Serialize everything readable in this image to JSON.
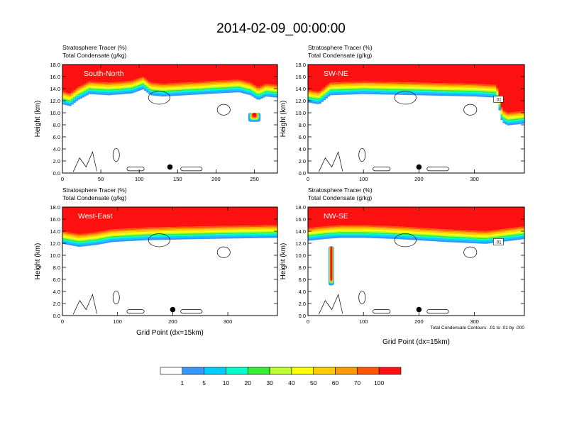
{
  "title": "2014-02-09_00:00:00",
  "colors": {
    "levels": [
      "#ffffff",
      "#3399ff",
      "#00ccff",
      "#00ffcc",
      "#33ee33",
      "#bbff33",
      "#ffff00",
      "#ffcc00",
      "#ff9900",
      "#ff5500",
      "#ff1111"
    ],
    "contour": "#000000",
    "marker": "#000000"
  },
  "chart_data": [
    {
      "type": "heatmap",
      "title_line1": "Stratosphere Tracer   (%)",
      "title_line2": "Total Condensate   (g/kg)",
      "label": "South-North",
      "ylabel": "Height (km)",
      "xlabel": "",
      "xlim": [
        0,
        280
      ],
      "ylim": [
        0,
        18
      ],
      "xticks": [
        "0",
        "50",
        "100",
        "150",
        "200",
        "250"
      ],
      "xtick_values": [
        0,
        50,
        100,
        150,
        200,
        250
      ],
      "yticks": [
        "0.0",
        "2.0",
        "4.0",
        "6.0",
        "8.0",
        "10.0",
        "12.0",
        "14.0",
        "16.0",
        "18.0"
      ],
      "marker": {
        "x": 140,
        "y": 1.0
      },
      "tropopause": [
        [
          0,
          13.5
        ],
        [
          10,
          13.2
        ],
        [
          20,
          14.2
        ],
        [
          35,
          15.2
        ],
        [
          60,
          15.0
        ],
        [
          90,
          15.3
        ],
        [
          105,
          16.0
        ],
        [
          115,
          15.0
        ],
        [
          130,
          14.8
        ],
        [
          160,
          15.0
        ],
        [
          200,
          15.3
        ],
        [
          230,
          15.5
        ],
        [
          245,
          15.0
        ],
        [
          255,
          14.2
        ],
        [
          265,
          14.8
        ],
        [
          280,
          14.6
        ]
      ],
      "intrusions": [
        [
          15,
          12.5,
          8,
          9.0
        ],
        [
          250,
          8.5,
          8,
          9.0
        ],
        [
          112,
          13.5,
          4,
          2.5
        ]
      ],
      "contour_label": "",
      "footnote": ""
    },
    {
      "type": "heatmap",
      "title_line1": "Stratosphere Tracer   (%)",
      "title_line2": "Total Condensate   (g/kg)",
      "label": "SW-NE",
      "ylabel": "Height (km)",
      "xlabel": "",
      "xlim": [
        0,
        390
      ],
      "ylim": [
        0,
        18
      ],
      "xticks": [
        "0",
        "100",
        "200",
        "300"
      ],
      "xtick_values": [
        0,
        100,
        200,
        300
      ],
      "yticks": [
        "0.0",
        "2.0",
        "4.0",
        "6.0",
        "8.0",
        "10.0",
        "12.0",
        "14.0",
        "16.0",
        "18.0"
      ],
      "marker": {
        "x": 200,
        "y": 1.0
      },
      "tropopause": [
        [
          0,
          13.8
        ],
        [
          20,
          13.5
        ],
        [
          40,
          15.0
        ],
        [
          100,
          15.2
        ],
        [
          200,
          15.0
        ],
        [
          300,
          14.8
        ],
        [
          340,
          14.6
        ],
        [
          350,
          10.5
        ],
        [
          360,
          10.0
        ],
        [
          390,
          10.3
        ]
      ],
      "intrusions": [],
      "contour_label": ".01",
      "footnote": ""
    },
    {
      "type": "heatmap",
      "title_line1": "Stratosphere Tracer   (%)",
      "title_line2": "Total Condensate   (g/kg)",
      "label": "West-East",
      "ylabel": "Height (km)",
      "xlabel": "Grid Point (dx=15km)",
      "xlim": [
        0,
        390
      ],
      "ylim": [
        0,
        18
      ],
      "xticks": [
        "0",
        "100",
        "200",
        "300"
      ],
      "xtick_values": [
        0,
        100,
        200,
        300
      ],
      "yticks": [
        "0.0",
        "2.0",
        "4.0",
        "6.0",
        "8.0",
        "10.0",
        "12.0",
        "14.0",
        "16.0",
        "18.0"
      ],
      "marker": {
        "x": 200,
        "y": 1.0
      },
      "tropopause": [
        [
          0,
          14.0
        ],
        [
          30,
          13.5
        ],
        [
          60,
          13.8
        ],
        [
          90,
          14.3
        ],
        [
          150,
          14.6
        ],
        [
          250,
          14.8
        ],
        [
          390,
          15.0
        ]
      ],
      "intrusions": [],
      "contour_label": "",
      "footnote": ""
    },
    {
      "type": "heatmap",
      "title_line1": "Stratosphere Tracer   (%)",
      "title_line2": "Total Condensate   (g/kg)",
      "label": "NW-SE",
      "ylabel": "Height (km)",
      "xlabel": "Grid Point (dx=15km)",
      "xlim": [
        0,
        390
      ],
      "ylim": [
        0,
        18
      ],
      "xticks": [
        "0",
        "100",
        "200",
        "300"
      ],
      "xtick_values": [
        0,
        100,
        200,
        300
      ],
      "yticks": [
        "0.0",
        "2.0",
        "4.0",
        "6.0",
        "8.0",
        "10.0",
        "12.0",
        "14.0",
        "16.0",
        "18.0"
      ],
      "marker": {
        "x": 200,
        "y": 1.0
      },
      "tropopause": [
        [
          0,
          14.5
        ],
        [
          30,
          14.8
        ],
        [
          60,
          15.0
        ],
        [
          100,
          15.0
        ],
        [
          160,
          14.8
        ],
        [
          250,
          14.3
        ],
        [
          320,
          14.0
        ],
        [
          390,
          14.8
        ]
      ],
      "intrusions": [
        [
          42,
          5.0,
          5,
          10.5
        ]
      ],
      "contour_label": ".01",
      "footnote": "Total Condensate Contours: .01 to .01 by .000"
    }
  ],
  "colorbar": {
    "labels": [
      "1",
      "5",
      "10",
      "20",
      "30",
      "40",
      "50",
      "60",
      "70",
      "100"
    ]
  }
}
